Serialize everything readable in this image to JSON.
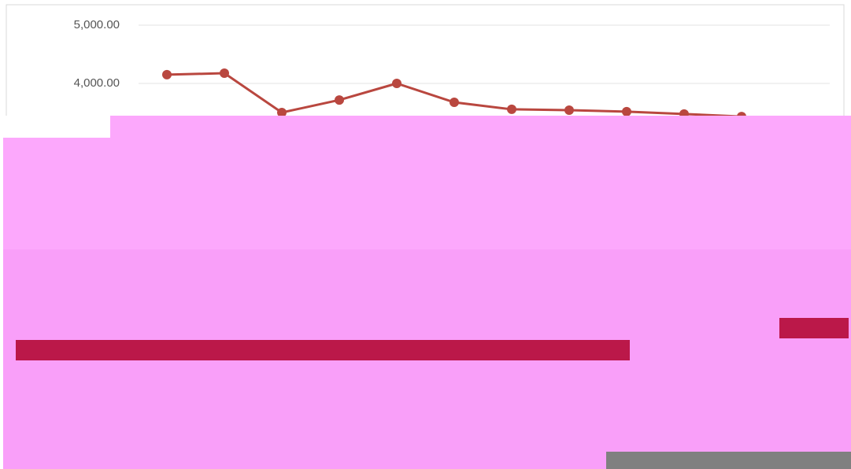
{
  "chart_data": {
    "type": "line",
    "categories": [
      null,
      null,
      null,
      null,
      null,
      null,
      null,
      null,
      null,
      null,
      null
    ],
    "series": [
      {
        "color": "#b9473f",
        "values": [
          4150,
          4175,
          3500,
          3715,
          4000,
          3675,
          3555,
          3540,
          3515,
          3475,
          3430
        ]
      }
    ],
    "ylim": [
      0,
      5000
    ],
    "yticks": [
      {
        "value": 4000,
        "label": "4,000.00"
      },
      {
        "value": 5000,
        "label": "5,000.00"
      }
    ],
    "grid": true
  }
}
